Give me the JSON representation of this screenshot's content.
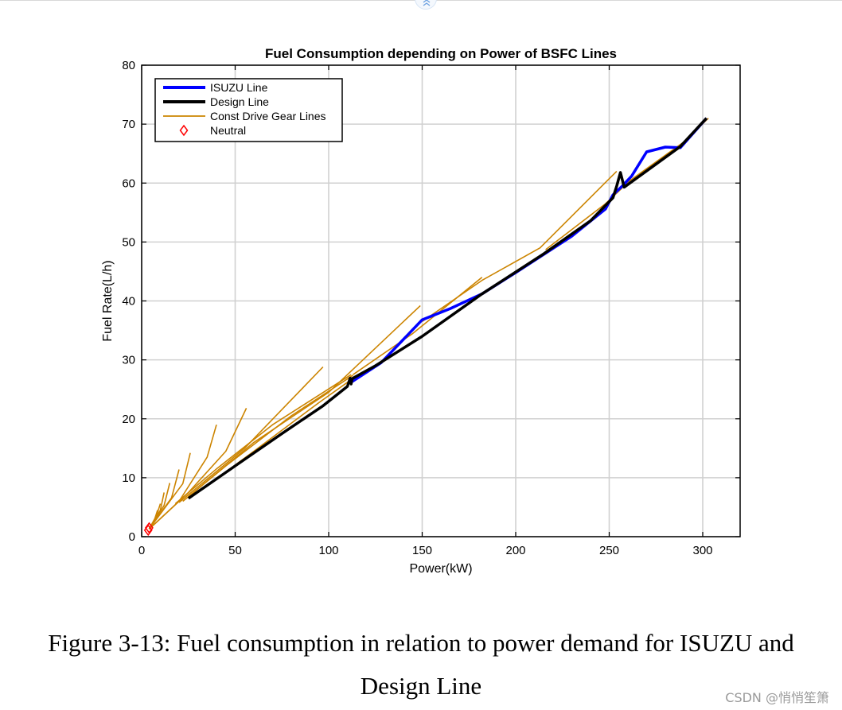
{
  "page": {
    "caption_line1": "Figure 3-13: Fuel consumption in relation to power demand for ISUZU and",
    "caption_line2": "Design Line",
    "watermark": "CSDN @悄悄笙箫"
  },
  "colors": {
    "isuzu": "#0000ff",
    "design": "#000000",
    "gear": "#cc8400",
    "neutral": "#ff0000",
    "grid": "#d0d0d0"
  },
  "chart_data": {
    "type": "line",
    "title": "Fuel Consumption depending on Power of BSFC Lines",
    "xlabel": "Power(kW)",
    "ylabel": "Fuel Rate(L/h)",
    "xlim": [
      0,
      320
    ],
    "ylim": [
      0,
      80
    ],
    "xticks": [
      0,
      50,
      100,
      150,
      200,
      250,
      300
    ],
    "yticks": [
      0,
      10,
      20,
      30,
      40,
      50,
      60,
      70,
      80
    ],
    "grid": true,
    "legend_position": "top-left",
    "legend": [
      "ISUZU Line",
      "Design Line",
      "Const Drive Gear Lines",
      "Neutral"
    ],
    "series": [
      {
        "name": "ISUZU Line",
        "style": "thick-blue",
        "x": [
          112,
          128,
          150,
          165,
          182,
          200,
          230,
          248,
          252,
          257,
          262,
          270,
          280,
          288,
          302
        ],
        "y": [
          26.2,
          29.5,
          36.8,
          38.7,
          41.2,
          44.8,
          51.0,
          55.6,
          58.0,
          59.5,
          61.2,
          65.3,
          66.1,
          66.0,
          71.0
        ]
      },
      {
        "name": "Design Line",
        "style": "thick-black",
        "x": [
          25,
          50,
          75,
          97,
          110,
          111.5,
          112,
          112.5,
          125,
          150,
          182,
          215,
          240,
          252,
          254,
          256,
          258,
          288,
          302
        ],
        "y": [
          6.5,
          12.0,
          17.5,
          22.2,
          25.5,
          26.9,
          25.9,
          26.8,
          29.0,
          34.0,
          41.2,
          48.0,
          53.6,
          57.5,
          59.5,
          61.8,
          59.3,
          66.2,
          71.0
        ]
      },
      {
        "name": "Const Drive Gear Lines",
        "style": "thin-orange",
        "lines": [
          {
            "x": [
              4,
              7,
              8.5
            ],
            "y": [
              1.3,
              3.0,
              4.5
            ]
          },
          {
            "x": [
              4,
              8,
              10
            ],
            "y": [
              1.3,
              3.6,
              5.6
            ]
          },
          {
            "x": [
              4,
              10,
              12
            ],
            "y": [
              1.3,
              4.5,
              7.5
            ]
          },
          {
            "x": [
              4,
              12,
              15
            ],
            "y": [
              1.3,
              5.3,
              9.1
            ]
          },
          {
            "x": [
              4,
              16,
              20
            ],
            "y": [
              1.3,
              6.6,
              11.4
            ]
          },
          {
            "x": [
              4,
              22,
              26
            ],
            "y": [
              1.3,
              9.0,
              14.2
            ]
          },
          {
            "x": [
              4,
              20,
              35,
              40
            ],
            "y": [
              1.3,
              6.0,
              13.5,
              19.0
            ]
          },
          {
            "x": [
              4,
              25,
              45,
              56
            ],
            "y": [
              1.3,
              7.5,
              14.5,
              21.8
            ]
          },
          {
            "x": [
              20,
              55,
              97
            ],
            "y": [
              5.8,
              15.0,
              28.8
            ]
          },
          {
            "x": [
              25,
              60,
              100,
              149
            ],
            "y": [
              6.8,
              16.0,
              24.5,
              39.2
            ]
          },
          {
            "x": [
              18,
              40,
              70,
              112
            ],
            "y": [
              5.6,
              11.5,
              19.0,
              27.5
            ]
          },
          {
            "x": [
              22,
              45,
              80,
              113
            ],
            "y": [
              6.0,
              12.0,
              20.5,
              27.4
            ]
          },
          {
            "x": [
              30,
              60,
              95,
              111
            ],
            "y": [
              7.5,
              14.5,
              22.8,
              26.4
            ]
          },
          {
            "x": [
              113,
              145,
              182
            ],
            "y": [
              27.5,
              34.5,
              44.0
            ]
          },
          {
            "x": [
              150,
              182,
              213,
              254
            ],
            "y": [
              36.5,
              43.5,
              49.0,
              62.0
            ]
          },
          {
            "x": [
              257,
              290,
              303
            ],
            "y": [
              59.5,
              67.0,
              71.0
            ]
          },
          {
            "x": [
              216,
              248,
              258
            ],
            "y": [
              48.7,
              56.5,
              59.5
            ]
          }
        ]
      },
      {
        "name": "Neutral",
        "style": "marker-diamond",
        "x": [
          4,
          3.5
        ],
        "y": [
          1.5,
          1.1
        ]
      }
    ]
  }
}
